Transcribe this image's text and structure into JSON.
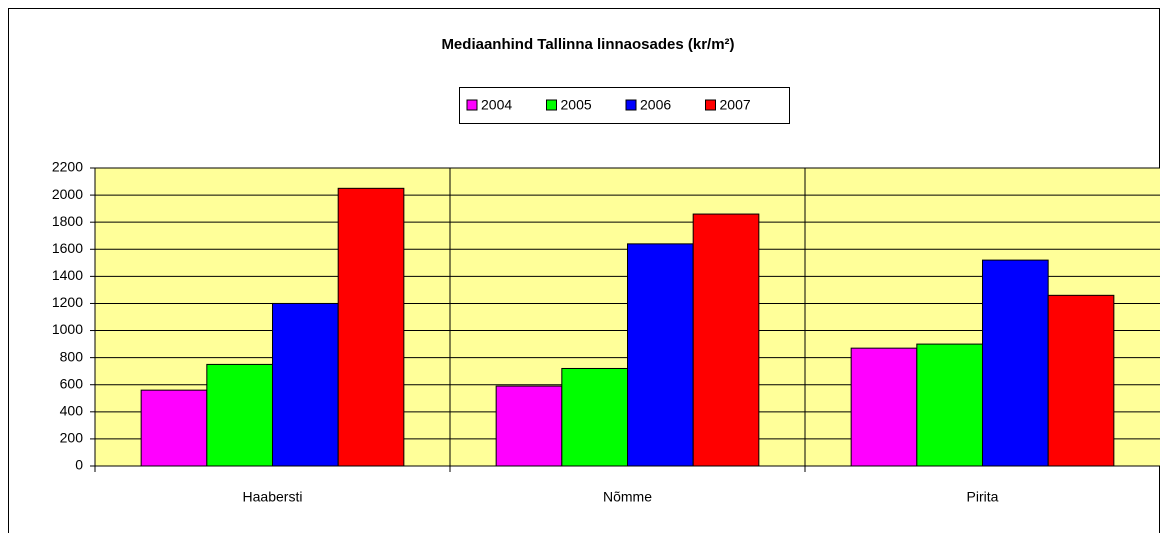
{
  "chart_data": {
    "type": "bar",
    "title": "Mediaanhind Tallinna linnaosades (kr/m²)",
    "categories": [
      "Haabersti",
      "Nõmme",
      "Pirita"
    ],
    "series": [
      {
        "name": "2004",
        "color": "#ff00ff",
        "values": [
          560,
          590,
          870
        ]
      },
      {
        "name": "2005",
        "color": "#00ff00",
        "values": [
          750,
          720,
          900
        ]
      },
      {
        "name": "2006",
        "color": "#0000ff",
        "values": [
          1200,
          1640,
          1520
        ]
      },
      {
        "name": "2007",
        "color": "#ff0000",
        "values": [
          2050,
          1860,
          1260
        ]
      }
    ],
    "ylim": [
      0,
      2200
    ],
    "yticks": [
      0,
      200,
      400,
      600,
      800,
      1000,
      1200,
      1400,
      1600,
      1800,
      2000,
      2200
    ],
    "grid": true,
    "legend": "top",
    "plot_background": "#ffff99"
  }
}
